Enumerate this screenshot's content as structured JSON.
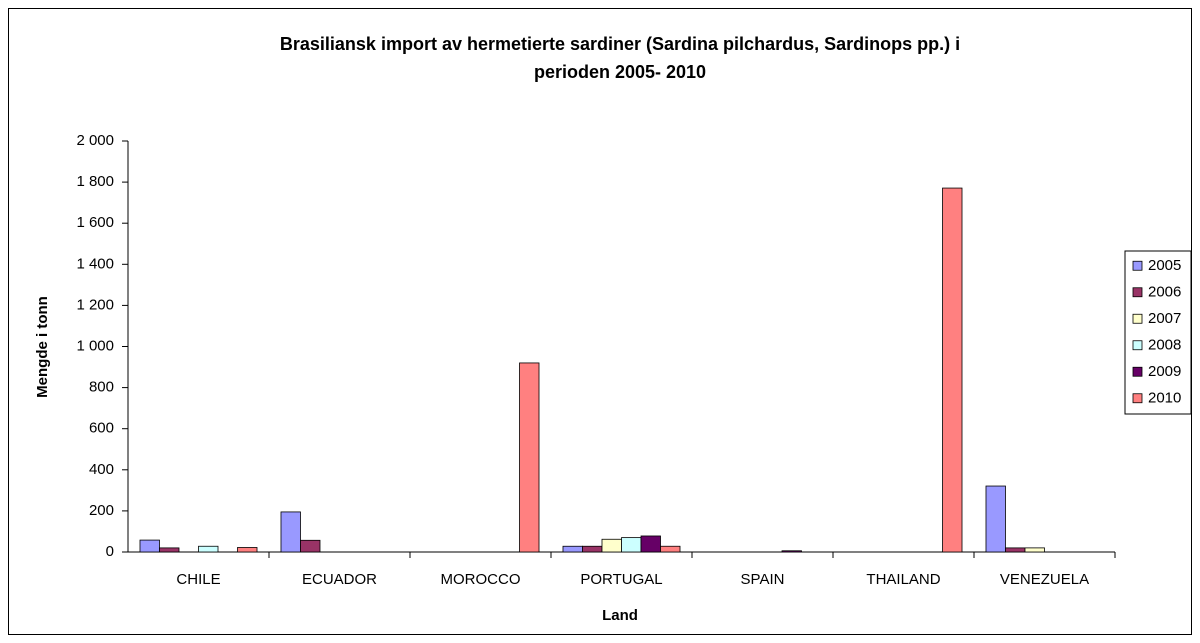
{
  "chart_data": {
    "type": "bar",
    "title": [
      "Brasiliansk import av hermetierte sardiner (Sardina pilchardus, Sardinops pp.) i",
      "perioden 2005- 2010"
    ],
    "x_label": "Land",
    "y_label": "Mengde i tonn",
    "categories": [
      "CHILE",
      "ECUADOR",
      "MOROCCO",
      "PORTUGAL",
      "SPAIN",
      "THAILAND",
      "VENEZUELA"
    ],
    "series": [
      {
        "name": "2005",
        "color": "#9999ff",
        "values": [
          58,
          195,
          0,
          28,
          0,
          0,
          321
        ]
      },
      {
        "name": "2006",
        "color": "#993366",
        "values": [
          20,
          57,
          0,
          28,
          0,
          0,
          20
        ]
      },
      {
        "name": "2007",
        "color": "#ffffcc",
        "values": [
          0,
          0,
          0,
          62,
          0,
          0,
          20
        ]
      },
      {
        "name": "2008",
        "color": "#ccffff",
        "values": [
          28,
          0,
          0,
          70,
          0,
          0,
          0
        ]
      },
      {
        "name": "2009",
        "color": "#660066",
        "values": [
          0,
          0,
          0,
          78,
          6,
          0,
          0
        ]
      },
      {
        "name": "2010",
        "color": "#ff8080",
        "values": [
          22,
          0,
          920,
          28,
          0,
          1771,
          0
        ]
      }
    ],
    "ylim": [
      0,
      2000
    ],
    "yticks": [
      0,
      200,
      400,
      600,
      800,
      {
        "value": 1000,
        "label": "1 000"
      },
      {
        "value": 1200,
        "label": "1 200"
      },
      {
        "value": 1400,
        "label": "1 400"
      },
      {
        "value": 1600,
        "label": "1 600"
      },
      {
        "value": 1800,
        "label": "1 800"
      },
      {
        "value": 2000,
        "label": "2 000"
      }
    ],
    "legend": "right"
  }
}
